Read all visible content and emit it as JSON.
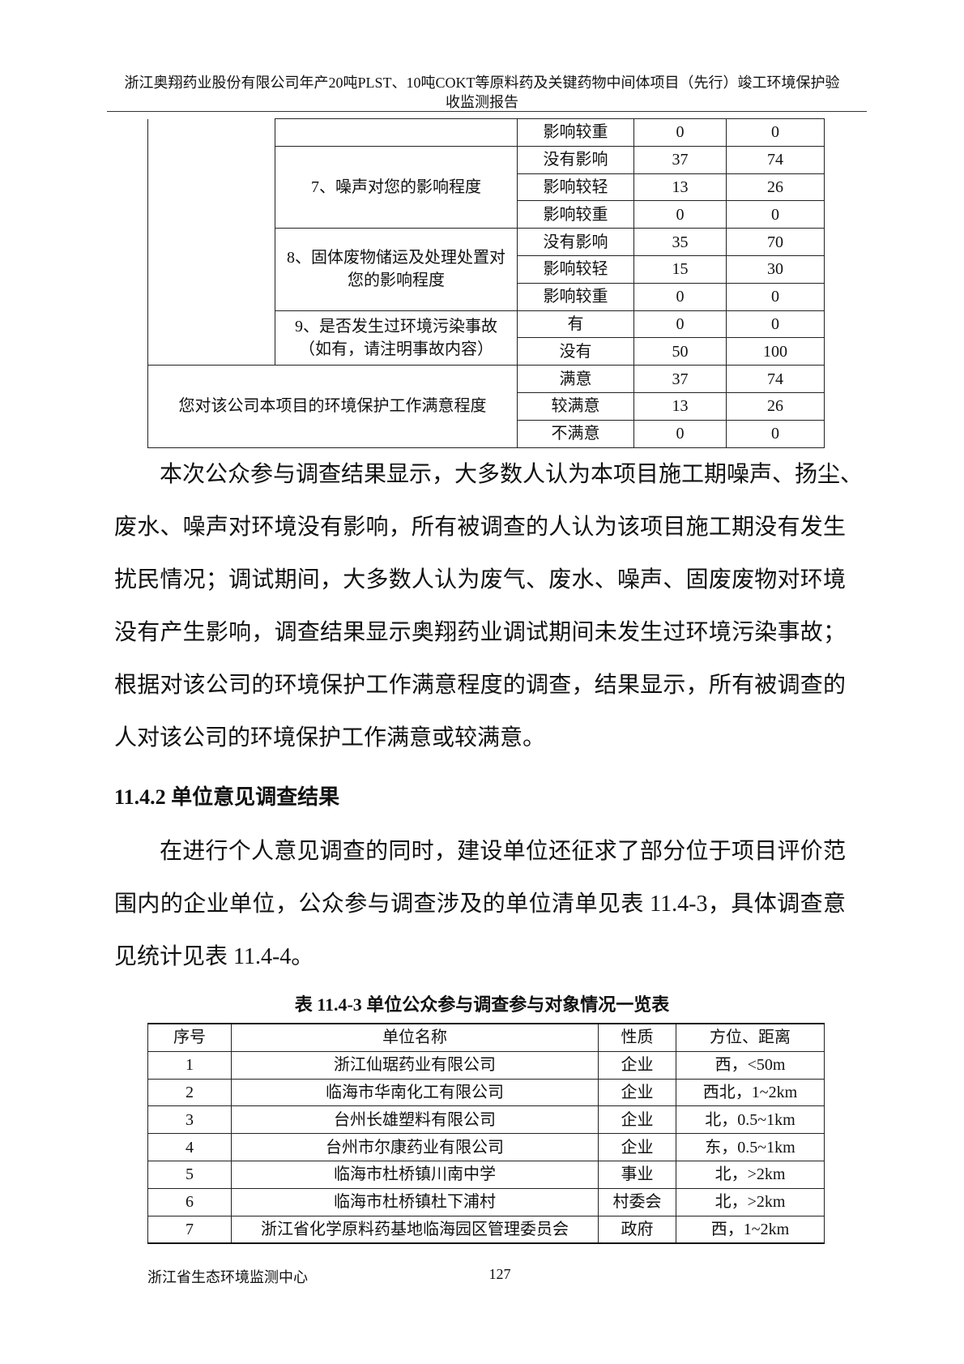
{
  "header": {
    "title_lines": [
      "浙江奥翔药业股份有限公司年产20吨PLST、10吨COKT等原料药及关键药物中间体项目（先行）竣工环境保护验",
      "收监测报告"
    ]
  },
  "table1": {
    "groups": [
      {
        "options": [
          [
            "影响较重",
            0,
            0
          ]
        ]
      },
      {
        "item_lines": [
          "7、噪声对您的影响程度"
        ],
        "options": [
          [
            "没有影响",
            37,
            74
          ],
          [
            "影响较轻",
            13,
            26
          ],
          [
            "影响较重",
            0,
            0
          ]
        ]
      },
      {
        "item_lines": [
          "8、固体废物储运及处理处置对",
          "您的影响程度"
        ],
        "options": [
          [
            "没有影响",
            35,
            70
          ],
          [
            "影响较轻",
            15,
            30
          ],
          [
            "影响较重",
            0,
            0
          ]
        ]
      },
      {
        "item_lines": [
          "9、是否发生过环境污染事故",
          "（如有，请注明事故内容）"
        ],
        "options": [
          [
            "有",
            0,
            0
          ],
          [
            "没有",
            50,
            100
          ]
        ]
      }
    ],
    "satisfaction": {
      "item": "您对该公司本项目的环境保护工作满意程度",
      "options": [
        [
          "满意",
          37,
          74
        ],
        [
          "较满意",
          13,
          26
        ],
        [
          "不满意",
          0,
          0
        ]
      ]
    }
  },
  "paragraph1": {
    "lines": [
      "本次公众参与调查结果显示，大多数人认为本项目施工期噪声、扬尘、",
      "废水、噪声对环境没有影响，所有被调查的人认为该项目施工期没有发生",
      "扰民情况；调试期间，大多数人认为废气、废水、噪声、固废废物对环境",
      "没有产生影响，调查结果显示奥翔药业调试期间未发生过环境污染事故；",
      "根据对该公司的环境保护工作满意程度的调查，结果显示，所有被调查的",
      "人对该公司的环境保护工作满意或较满意。"
    ]
  },
  "heading": "11.4.2 单位意见调查结果",
  "paragraph2": {
    "lines": [
      "在进行个人意见调查的同时，建设单位还征求了部分位于项目评价范",
      "围内的企业单位，公众参与调查涉及的单位清单见表 11.4-3，具体调查意",
      "见统计见表 11.4-4。"
    ]
  },
  "table2": {
    "caption": "表 11.4-3  单位公众参与调查参与对象情况一览表",
    "header": [
      "序号",
      "单位名称",
      "性质",
      "方位、距离"
    ],
    "rows": [
      [
        1,
        "浙江仙琚药业有限公司",
        "企业",
        "西，<50m"
      ],
      [
        2,
        "临海市华南化工有限公司",
        "企业",
        "西北，1~2km"
      ],
      [
        3,
        "台州长雄塑料有限公司",
        "企业",
        "北，0.5~1km"
      ],
      [
        4,
        "台州市尔康药业有限公司",
        "企业",
        "东，0.5~1km"
      ],
      [
        5,
        "临海市杜桥镇川南中学",
        "事业",
        "北，>2km"
      ],
      [
        6,
        "临海市杜桥镇杜下浦村",
        "村委会",
        "北，>2km"
      ],
      [
        7,
        "浙江省化学原料药基地临海园区管理委员会",
        "政府",
        "西，1~2km"
      ]
    ]
  },
  "footer": {
    "org": "浙江省生态环境监测中心",
    "page": 127
  }
}
